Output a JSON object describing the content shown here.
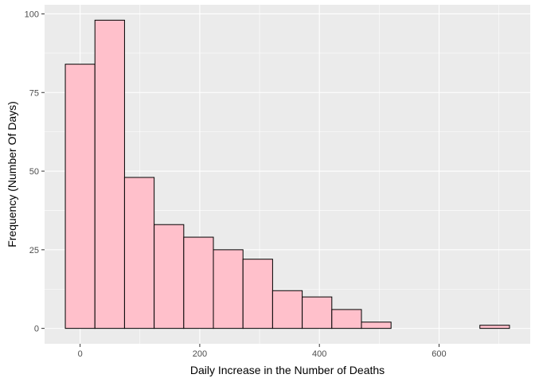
{
  "chart_data": {
    "type": "bar",
    "subtype": "histogram",
    "title": "",
    "xlabel": "Daily Increase in the Number of Deaths",
    "ylabel": "Frequency (Number Of Days)",
    "bin_width": 49.5,
    "bins": [
      {
        "x_start": -24.75,
        "x_end": 24.75,
        "count": 84
      },
      {
        "x_start": 24.75,
        "x_end": 74.25,
        "count": 98
      },
      {
        "x_start": 74.25,
        "x_end": 123.75,
        "count": 48
      },
      {
        "x_start": 123.75,
        "x_end": 173.25,
        "count": 33
      },
      {
        "x_start": 173.25,
        "x_end": 222.75,
        "count": 29
      },
      {
        "x_start": 222.75,
        "x_end": 272.25,
        "count": 25
      },
      {
        "x_start": 272.25,
        "x_end": 321.75,
        "count": 22
      },
      {
        "x_start": 321.75,
        "x_end": 371.25,
        "count": 12
      },
      {
        "x_start": 371.25,
        "x_end": 420.75,
        "count": 10
      },
      {
        "x_start": 420.75,
        "x_end": 470.25,
        "count": 6
      },
      {
        "x_start": 470.25,
        "x_end": 519.75,
        "count": 2
      },
      {
        "x_start": 519.75,
        "x_end": 569.25,
        "count": 0
      },
      {
        "x_start": 569.25,
        "x_end": 618.75,
        "count": 0
      },
      {
        "x_start": 618.75,
        "x_end": 668.25,
        "count": 0
      },
      {
        "x_start": 668.25,
        "x_end": 717.75,
        "count": 1
      }
    ],
    "xlim": [
      -59.4,
      752.4
    ],
    "ylim": [
      -4.9,
      102.9
    ],
    "x_ticks": [
      0,
      200,
      400,
      600
    ],
    "y_ticks": [
      0,
      25,
      50,
      75,
      100
    ],
    "grid": true,
    "legend": "none",
    "colors": {
      "bar_fill": "#ffc0cb",
      "bar_stroke": "#000000",
      "panel_background": "#ebebeb",
      "grid_major": "#ffffff",
      "tick_text": "#4d4d4d"
    }
  }
}
